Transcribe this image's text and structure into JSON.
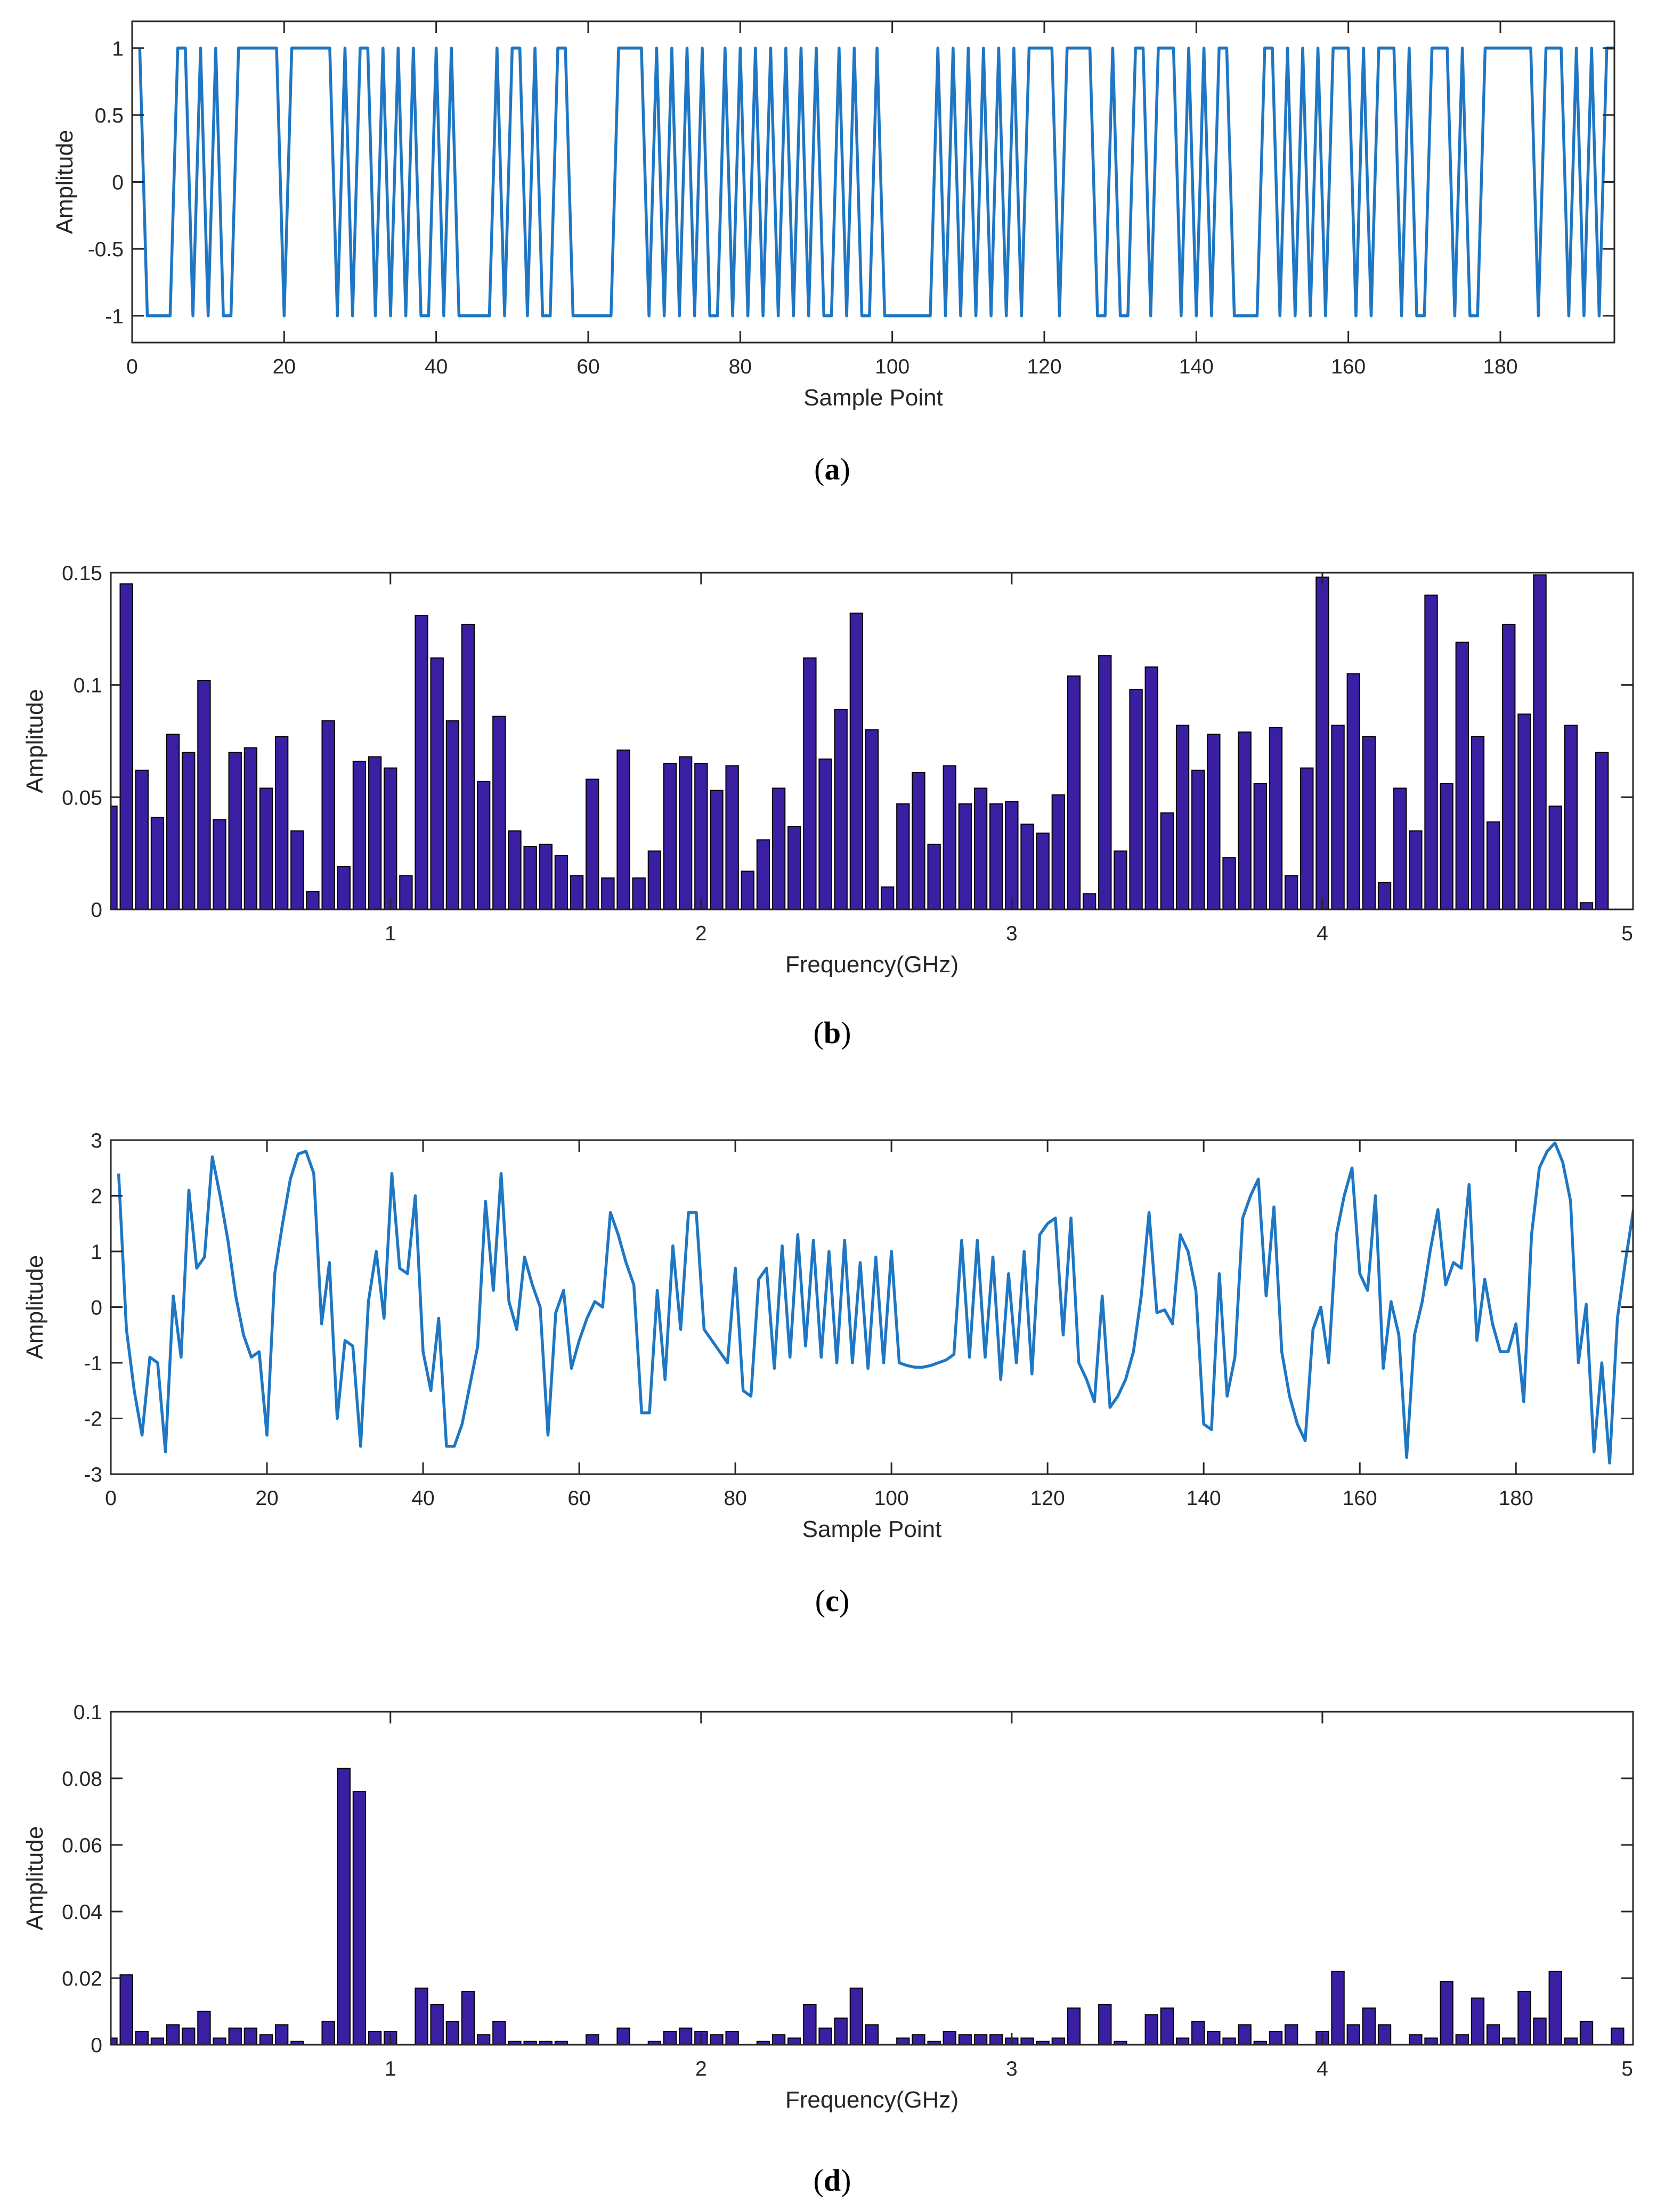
{
  "colors": {
    "line": "#1f77c4",
    "bar_fill": "#3a1fa3",
    "bar_edge": "#000000",
    "axis": "#262626"
  },
  "chart_data": [
    {
      "id": "a",
      "type": "line",
      "caption": {
        "open": "(",
        "letter": "a",
        "close": ")"
      },
      "xlabel": "Sample Point",
      "ylabel": "Amplitude",
      "xlim": [
        0,
        195
      ],
      "ylim": [
        -1.2,
        1.2
      ],
      "xticks": [
        0,
        20,
        40,
        60,
        80,
        100,
        120,
        140,
        160,
        180
      ],
      "xtick_labels": [
        "0",
        "20",
        "40",
        "60",
        "80",
        "100",
        "120",
        "140",
        "160",
        "180"
      ],
      "yticks": [
        -1,
        -0.5,
        0,
        0.5,
        1
      ],
      "ytick_labels": [
        "-1",
        "-0.5",
        "0",
        "0.5",
        "1"
      ],
      "series": [
        {
          "name": "signal",
          "x_start": 1,
          "x_step": 1,
          "values": [
            1,
            -1,
            -1,
            -1,
            -1,
            1,
            1,
            -1,
            1,
            -1,
            1,
            -1,
            -1,
            1,
            1,
            1,
            1,
            1,
            1,
            -1,
            1,
            1,
            1,
            1,
            1,
            1,
            -1,
            1,
            -1,
            1,
            1,
            -1,
            1,
            -1,
            1,
            -1,
            1,
            -1,
            -1,
            1,
            -1,
            1,
            -1,
            -1,
            -1,
            -1,
            -1,
            1,
            -1,
            1,
            1,
            -1,
            1,
            -1,
            -1,
            1,
            1,
            -1,
            -1,
            -1,
            -1,
            -1,
            -1,
            1,
            1,
            1,
            1,
            -1,
            1,
            -1,
            1,
            -1,
            1,
            -1,
            1,
            -1,
            -1,
            1,
            -1,
            1,
            -1,
            1,
            -1,
            1,
            -1,
            1,
            -1,
            1,
            -1,
            1,
            -1,
            -1,
            1,
            -1,
            1,
            -1,
            -1,
            1,
            -1,
            -1,
            -1,
            -1,
            -1,
            -1,
            -1,
            1,
            -1,
            1,
            -1,
            1,
            -1,
            1,
            -1,
            1,
            -1,
            1,
            -1,
            1,
            1,
            1,
            1,
            -1,
            1,
            1,
            1,
            1,
            -1,
            -1,
            1,
            -1,
            -1,
            1,
            1,
            -1,
            1,
            1,
            1,
            -1,
            1,
            -1,
            1,
            -1,
            1,
            1,
            -1,
            -1,
            -1,
            -1,
            1,
            1,
            -1,
            1,
            -1,
            1,
            -1,
            1,
            -1,
            1,
            1,
            1,
            -1,
            1,
            -1,
            1,
            1,
            1,
            -1,
            1,
            -1,
            -1,
            1,
            1,
            1,
            -1,
            1,
            -1,
            -1,
            1,
            1,
            1,
            1,
            1,
            1,
            1,
            -1,
            1,
            1,
            1,
            -1,
            1,
            -1,
            1,
            -1,
            1,
            1,
            1,
            1,
            1,
            1,
            -1
          ]
        }
      ]
    },
    {
      "id": "b",
      "type": "bar",
      "caption": {
        "open": "(",
        "letter": "b",
        "close": ")"
      },
      "xlabel": "Frequency(GHz)",
      "ylabel": "Amplitude",
      "xlim": [
        0.1,
        5.0
      ],
      "ylim": [
        0,
        0.15
      ],
      "bar_width": 0.04,
      "xticks": [
        1,
        2,
        3,
        4,
        5
      ],
      "xtick_labels": [
        "1",
        "2",
        "3",
        "4",
        "5"
      ],
      "yticks": [
        0,
        0.05,
        0.1,
        0.15
      ],
      "ytick_labels": [
        "0",
        "0.05",
        "0.1",
        "0.15"
      ],
      "x_start": 0.1,
      "x_step": 0.05,
      "values": [
        0.046,
        0.145,
        0.062,
        0.041,
        0.078,
        0.07,
        0.102,
        0.04,
        0.07,
        0.072,
        0.054,
        0.077,
        0.035,
        0.008,
        0.084,
        0.019,
        0.066,
        0.068,
        0.063,
        0.015,
        0.131,
        0.112,
        0.084,
        0.127,
        0.057,
        0.086,
        0.035,
        0.028,
        0.029,
        0.024,
        0.015,
        0.058,
        0.014,
        0.071,
        0.014,
        0.026,
        0.065,
        0.068,
        0.065,
        0.053,
        0.064,
        0.017,
        0.031,
        0.054,
        0.037,
        0.112,
        0.067,
        0.089,
        0.132,
        0.08,
        0.01,
        0.047,
        0.061,
        0.029,
        0.064,
        0.047,
        0.054,
        0.047,
        0.048,
        0.038,
        0.034,
        0.051,
        0.104,
        0.007,
        0.113,
        0.026,
        0.098,
        0.108,
        0.043,
        0.082,
        0.062,
        0.078,
        0.023,
        0.079,
        0.056,
        0.081,
        0.015,
        0.063,
        0.148,
        0.082,
        0.105,
        0.077,
        0.012,
        0.054,
        0.035,
        0.14,
        0.056,
        0.119,
        0.077,
        0.039,
        0.127,
        0.087,
        0.149,
        0.046,
        0.082,
        0.003,
        0.07
      ]
    },
    {
      "id": "c",
      "type": "line",
      "caption": {
        "open": "(",
        "letter": "c",
        "close": ")"
      },
      "xlabel": "Sample Point",
      "ylabel": "Amplitude",
      "xlim": [
        0,
        195
      ],
      "ylim": [
        -3,
        3
      ],
      "xticks": [
        0,
        20,
        40,
        60,
        80,
        100,
        120,
        140,
        160,
        180
      ],
      "xtick_labels": [
        "0",
        "20",
        "40",
        "60",
        "80",
        "100",
        "120",
        "140",
        "160",
        "180"
      ],
      "yticks": [
        -3,
        -2,
        -1,
        0,
        1,
        2,
        3
      ],
      "ytick_labels": [
        "-3",
        "-2",
        "-1",
        "0",
        "1",
        "2",
        "3"
      ],
      "series": [
        {
          "name": "signal",
          "x_start": 1,
          "x_step": 1,
          "values": [
            2.4,
            -0.4,
            -1.5,
            -2.3,
            -0.9,
            -1.0,
            -2.6,
            0.2,
            -0.9,
            2.1,
            0.7,
            0.9,
            2.7,
            2.0,
            1.2,
            0.2,
            -0.5,
            -0.9,
            -0.8,
            -2.3,
            0.6,
            1.5,
            2.3,
            2.75,
            2.8,
            2.4,
            -0.3,
            0.8,
            -2.0,
            -0.6,
            -0.7,
            -2.5,
            0.1,
            1.0,
            -0.2,
            2.4,
            0.7,
            0.6,
            2.0,
            -0.8,
            -1.5,
            -0.2,
            -2.5,
            -2.5,
            -2.1,
            -1.4,
            -0.7,
            1.9,
            0.3,
            2.4,
            0.1,
            -0.4,
            0.9,
            0.4,
            0.0,
            -2.3,
            -0.1,
            0.3,
            -1.1,
            -0.6,
            -0.2,
            0.1,
            0.0,
            1.7,
            1.3,
            0.8,
            0.4,
            -1.9,
            -1.9,
            0.3,
            -1.3,
            1.1,
            -0.4,
            1.7,
            1.7,
            -0.4,
            -0.6,
            -0.8,
            -1.0,
            0.7,
            -1.5,
            -1.6,
            0.5,
            0.7,
            -1.1,
            1.1,
            -0.9,
            1.3,
            -0.7,
            1.2,
            -0.9,
            1.0,
            -1.0,
            1.2,
            -1.0,
            0.8,
            -1.1,
            0.9,
            -1.0,
            1.0,
            -1.0,
            -1.05,
            -1.08,
            -1.08,
            -1.05,
            -1.0,
            -0.95,
            -0.85,
            1.2,
            -0.9,
            1.2,
            -0.9,
            0.9,
            -1.3,
            0.6,
            -1.0,
            1.0,
            -1.2,
            1.3,
            1.5,
            1.6,
            -0.5,
            1.6,
            -1.0,
            -1.3,
            -1.7,
            0.2,
            -1.8,
            -1.6,
            -1.3,
            -0.8,
            0.2,
            1.7,
            -0.1,
            -0.05,
            -0.3,
            1.3,
            1.0,
            0.3,
            -2.1,
            -2.2,
            0.6,
            -1.6,
            -0.9,
            1.6,
            2.0,
            2.3,
            0.2,
            1.8,
            -0.8,
            -1.6,
            -2.1,
            -2.4,
            -0.4,
            0.0,
            -1.0,
            1.3,
            2.0,
            2.5,
            0.6,
            0.3,
            2.0,
            -1.1,
            0.1,
            -0.5,
            -2.7,
            -0.5,
            0.1,
            1.0,
            1.75,
            0.4,
            0.8,
            0.7,
            2.2,
            -0.6,
            0.5,
            -0.3,
            -0.8,
            -0.8,
            -0.3,
            -1.7,
            1.3,
            2.5,
            2.8,
            2.95,
            2.6,
            1.9,
            -1.0,
            0.05,
            -2.6,
            -1.0,
            -2.8,
            -0.2,
            0.8,
            1.7,
            2.5,
            2.95,
            1.0
          ]
        }
      ]
    },
    {
      "id": "d",
      "type": "bar",
      "caption": {
        "open": "(",
        "letter": "d",
        "close": ")"
      },
      "xlabel": "Frequency(GHz)",
      "ylabel": "Amplitude",
      "xlim": [
        0.1,
        5.0
      ],
      "ylim": [
        0,
        0.1
      ],
      "bar_width": 0.04,
      "xticks": [
        1,
        2,
        3,
        4,
        5
      ],
      "xtick_labels": [
        "1",
        "2",
        "3",
        "4",
        "5"
      ],
      "yticks": [
        0,
        0.02,
        0.04,
        0.06,
        0.08,
        0.1
      ],
      "ytick_labels": [
        "0",
        "0.02",
        "0.04",
        "0.06",
        "0.08",
        "0.1"
      ],
      "x_start": 0.1,
      "x_step": 0.05,
      "values": [
        0.002,
        0.021,
        0.004,
        0.002,
        0.006,
        0.005,
        0.01,
        0.002,
        0.005,
        0.005,
        0.003,
        0.006,
        0.001,
        0.0,
        0.007,
        0.083,
        0.076,
        0.004,
        0.004,
        0.0,
        0.017,
        0.012,
        0.007,
        0.016,
        0.003,
        0.007,
        0.001,
        0.001,
        0.001,
        0.001,
        0.0,
        0.003,
        0.0,
        0.005,
        0.0,
        0.001,
        0.004,
        0.005,
        0.004,
        0.003,
        0.004,
        0.0,
        0.001,
        0.003,
        0.002,
        0.012,
        0.005,
        0.008,
        0.017,
        0.006,
        0.0,
        0.002,
        0.003,
        0.001,
        0.004,
        0.003,
        0.003,
        0.003,
        0.002,
        0.002,
        0.001,
        0.002,
        0.011,
        0.0,
        0.012,
        0.001,
        0.0,
        0.009,
        0.011,
        0.002,
        0.007,
        0.004,
        0.002,
        0.006,
        0.001,
        0.004,
        0.006,
        0.0,
        0.004,
        0.022,
        0.006,
        0.011,
        0.006,
        0.0,
        0.003,
        0.002,
        0.019,
        0.003,
        0.014,
        0.006,
        0.002,
        0.016,
        0.008,
        0.022,
        0.002,
        0.007,
        0.0,
        0.005
      ]
    }
  ]
}
